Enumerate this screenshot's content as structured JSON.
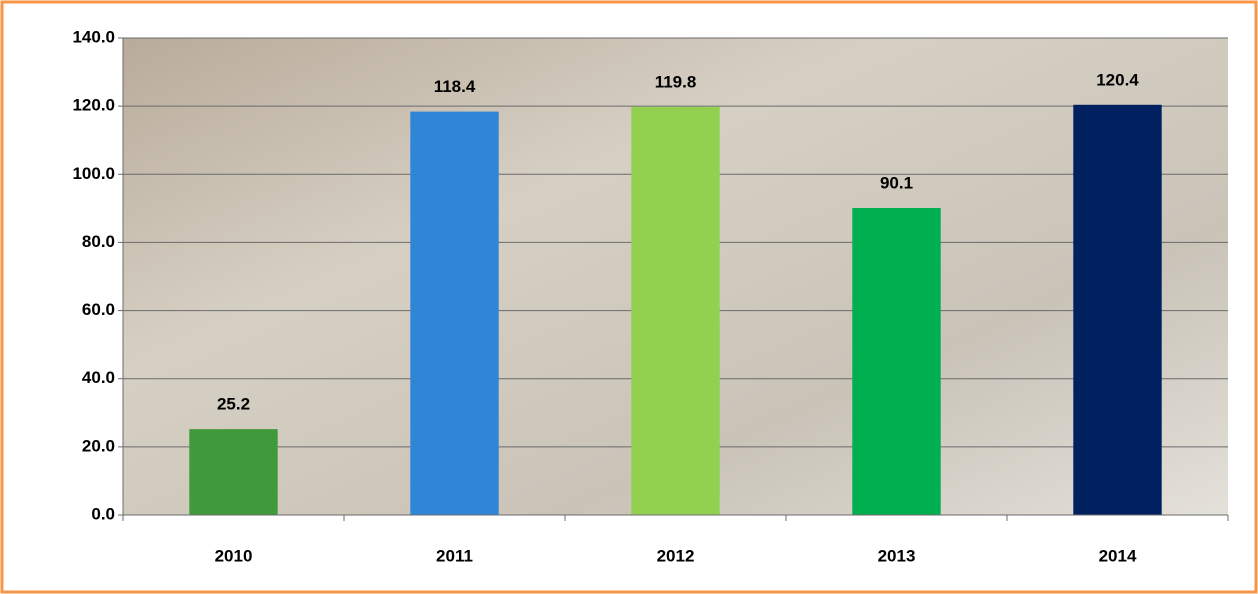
{
  "chart_data": {
    "type": "bar",
    "categories": [
      "2010",
      "2011",
      "2012",
      "2013",
      "2014"
    ],
    "values": [
      25.2,
      118.4,
      119.8,
      90.1,
      120.4
    ],
    "colors": [
      "#3f9a3c",
      "#2f86d6",
      "#92d050",
      "#00b050",
      "#002060"
    ],
    "ylim": [
      0,
      140
    ],
    "yticks": [
      {
        "value": 0,
        "label": "0.0"
      },
      {
        "value": 20,
        "label": "20.0"
      },
      {
        "value": 40,
        "label": "40.0"
      },
      {
        "value": 60,
        "label": "60.0"
      },
      {
        "value": 80,
        "label": "80.0"
      },
      {
        "value": 100,
        "label": "100.0"
      },
      {
        "value": 120,
        "label": "120.0"
      },
      {
        "value": 140,
        "label": "140.0"
      }
    ],
    "grid": true
  }
}
